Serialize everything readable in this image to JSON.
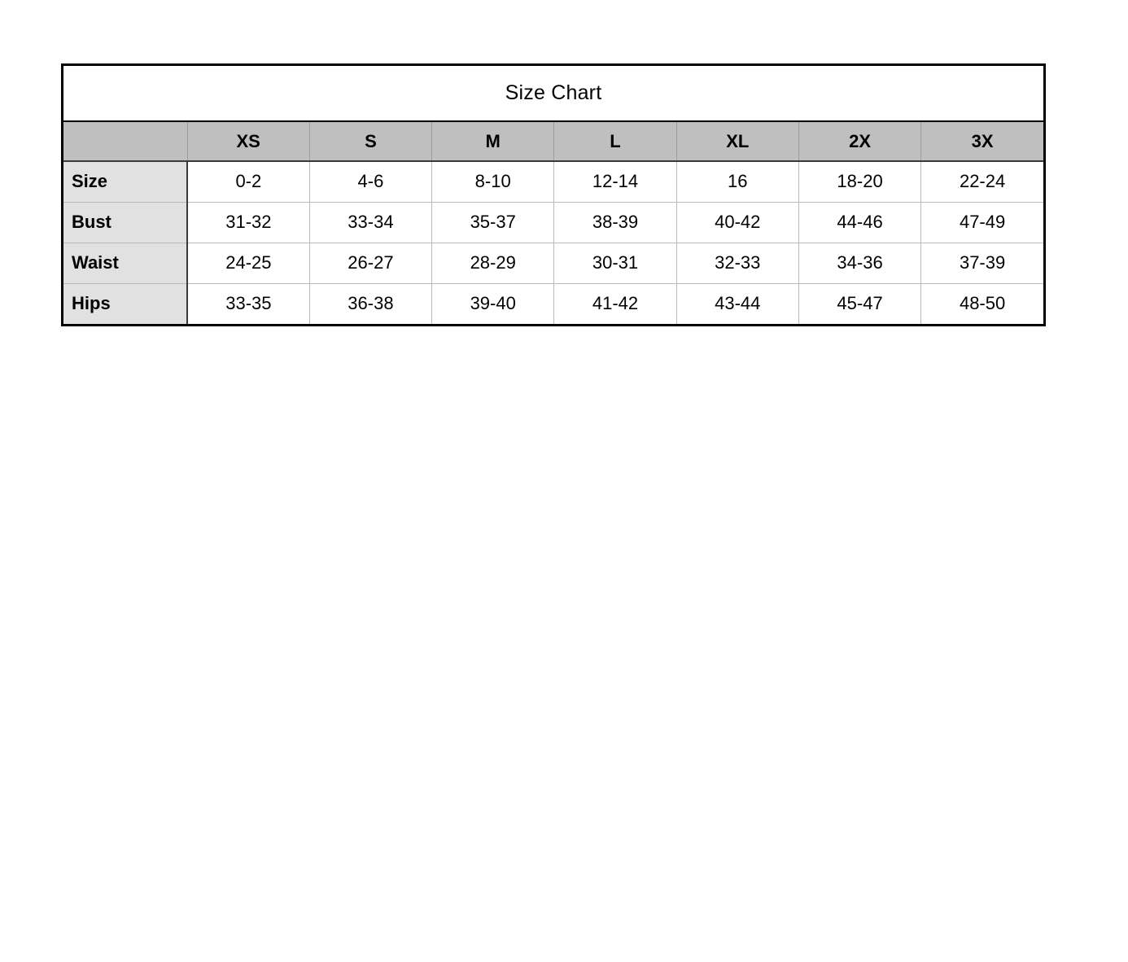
{
  "title": "Size Chart",
  "table": {
    "corner_label": "",
    "columns": [
      "XS",
      "S",
      "M",
      "L",
      "XL",
      "2X",
      "3X"
    ],
    "rows": [
      {
        "label": "Size",
        "values": [
          "0-2",
          "4-6",
          "8-10",
          "12-14",
          "16",
          "18-20",
          "22-24"
        ]
      },
      {
        "label": "Bust",
        "values": [
          "31-32",
          "33-34",
          "35-37",
          "38-39",
          "40-42",
          "44-46",
          "47-49"
        ]
      },
      {
        "label": "Waist",
        "values": [
          "24-25",
          "26-27",
          "28-29",
          "30-31",
          "32-33",
          "34-36",
          "37-39"
        ]
      },
      {
        "label": "Hips",
        "values": [
          "33-35",
          "36-38",
          "39-40",
          "41-42",
          "43-44",
          "45-47",
          "48-50"
        ]
      }
    ]
  },
  "colors": {
    "header_bg": "#bfbfbf",
    "label_column_bg": "#e1e1e1",
    "outer_border": "#000000",
    "inner_grid": "#b9b9b9",
    "page_bg": "#ffffff"
  }
}
